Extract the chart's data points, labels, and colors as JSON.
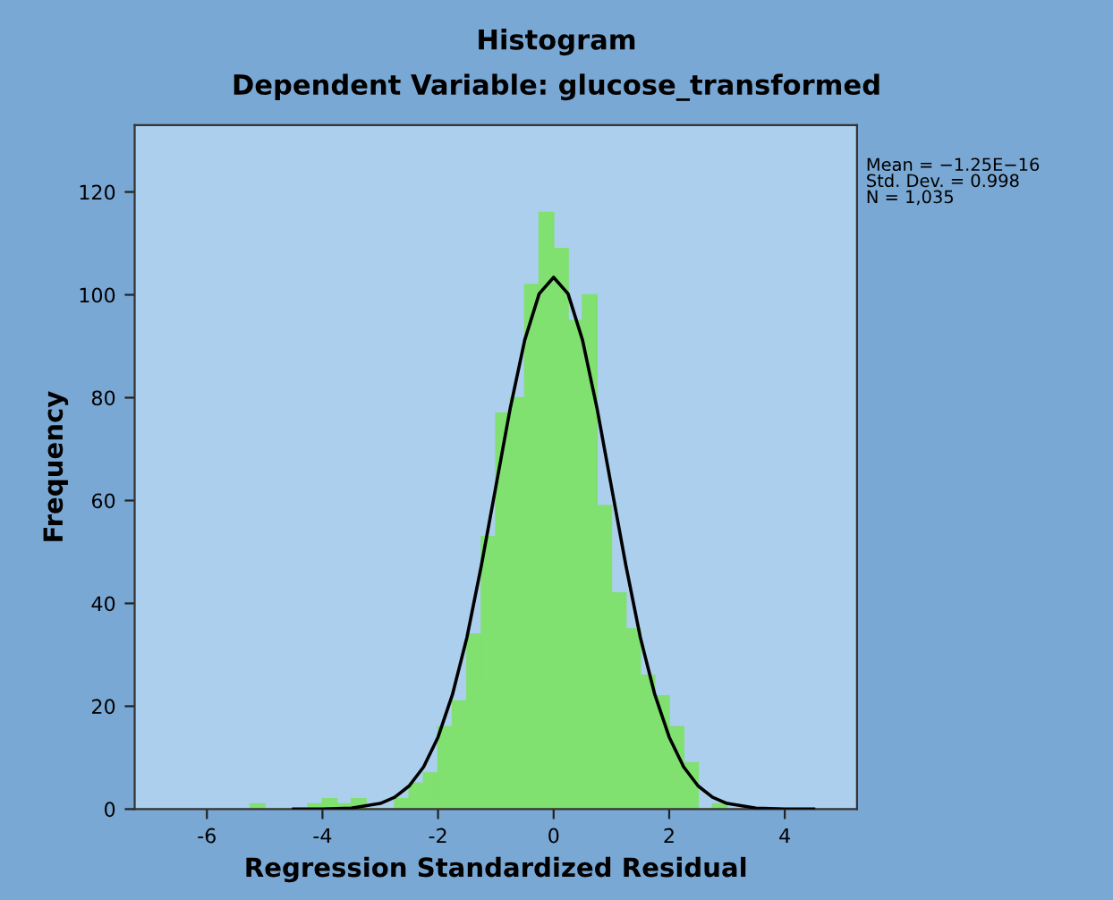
{
  "chart_data": {
    "type": "histogram",
    "title": "Histogram",
    "subtitle": "Dependent Variable: glucose_transformed",
    "xlabel": "Regression Standardized Residual",
    "ylabel": "Frequency",
    "bins": [
      -5.25,
      -5.0,
      -4.75,
      -4.5,
      -4.25,
      -4.0,
      -3.75,
      -3.5,
      -3.25,
      -3.0,
      -2.75,
      -2.5,
      -2.25,
      -2.0,
      -1.75,
      -1.5,
      -1.25,
      -1.0,
      -0.75,
      -0.5,
      -0.25,
      0,
      0.25,
      0.5,
      0.75,
      1.0,
      1.25,
      1.5,
      1.75,
      2.0,
      2.25,
      2.5,
      2.75,
      3.0
    ],
    "values": [
      1,
      0,
      0,
      0,
      1,
      2,
      1,
      2,
      0,
      0,
      2,
      5,
      7,
      16,
      21,
      34,
      53,
      77,
      80,
      102,
      116,
      109,
      95,
      100,
      59,
      42,
      35,
      26,
      22,
      16,
      9,
      0,
      1
    ],
    "color": "#80e070",
    "series": [
      {
        "type": "line",
        "color": "#000000",
        "x": [
          -4.5,
          -4,
          -3.5,
          -3,
          -2.75,
          -2.5,
          -2.25,
          -2,
          -1.75,
          -1.5,
          -1.25,
          -1,
          -0.75,
          -0.5,
          -0.25,
          0,
          0.25,
          0.5,
          0.75,
          1,
          1.25,
          1.5,
          1.75,
          2,
          2.25,
          2.5,
          2.75,
          3,
          3.5,
          4,
          4.5
        ],
        "values": [
          0,
          0,
          0.2,
          1.1,
          2.3,
          4.5,
          8.2,
          14,
          22.3,
          33.4,
          47.4,
          62.7,
          78,
          91.2,
          100.2,
          103.4,
          100.2,
          91.2,
          78,
          62.7,
          47.4,
          33.4,
          22.3,
          14,
          8.2,
          4.5,
          2.3,
          1.1,
          0.2,
          0,
          0
        ]
      }
    ],
    "annotations": [
      "Mean = −1.25E−16\nStd. Dev. = 0.998\nN = 1,035"
    ],
    "xlim": [
      -7.25,
      5.25
    ],
    "xticks": [
      -6,
      -4,
      -2,
      0,
      2,
      4
    ],
    "ylim": [
      0,
      133
    ],
    "yticks": [
      0,
      20,
      40,
      60,
      80,
      100,
      120
    ],
    "grid": false
  }
}
